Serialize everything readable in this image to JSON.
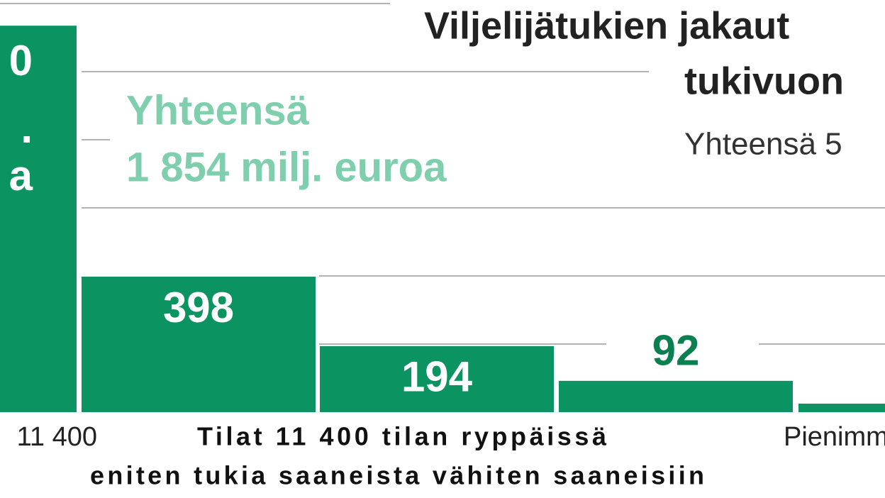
{
  "chart_data": {
    "type": "bar",
    "title": [
      "Viljelijätukien jakaut",
      "tukivuon"
    ],
    "subtitle": "Yhteensä 5",
    "annotation": [
      "Yhteensä",
      "1 854 milj. euroa"
    ],
    "first_bar_label_fragments": [
      "0",
      ".",
      "a"
    ],
    "categories": [
      "11 400",
      null,
      null,
      null,
      "Pienimm"
    ],
    "values": [
      1135,
      398,
      194,
      92,
      25
    ],
    "value_labels": [
      null,
      "398",
      "194",
      "92",
      null
    ],
    "x_label": [
      "Tilat 11 400 tilan ryppäissä",
      "eniten tukia saaneista vähiten saaneisiin"
    ],
    "color": "#0b9462",
    "annotation_color": "#7fcfae",
    "ylim": [
      0,
      1200
    ],
    "gridlines": [
      200,
      400,
      600,
      800,
      1000,
      1200
    ],
    "grid": true
  }
}
